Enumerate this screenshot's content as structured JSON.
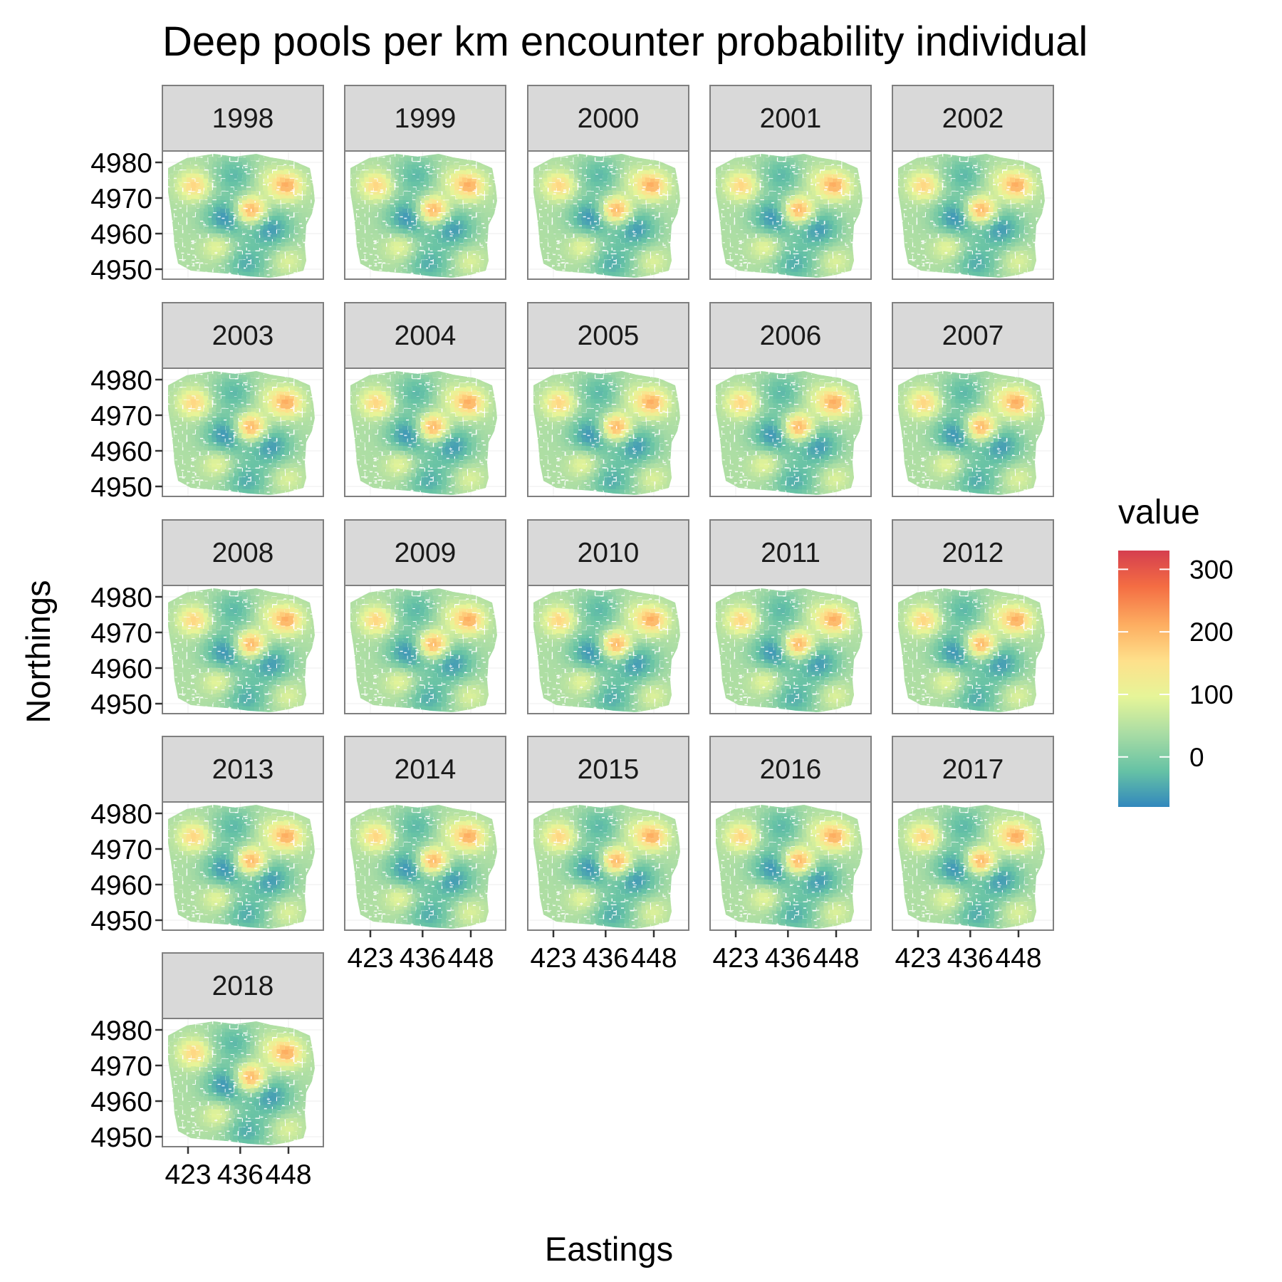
{
  "chart_data": {
    "type": "heatmap",
    "title": "Deep pools per km encounter probability individual",
    "xlabel": "Eastings",
    "ylabel": "Northings",
    "panels": [
      "1998",
      "1999",
      "2000",
      "2001",
      "2002",
      "2003",
      "2004",
      "2005",
      "2006",
      "2007",
      "2008",
      "2009",
      "2010",
      "2011",
      "2012",
      "2013",
      "2014",
      "2015",
      "2016",
      "2017",
      "2018"
    ],
    "x_ticks": [
      "423",
      "436",
      "448"
    ],
    "y_ticks": [
      "4980",
      "4970",
      "4960",
      "4950"
    ],
    "x_tick_values": [
      423,
      436,
      448
    ],
    "y_tick_values": [
      4980,
      4970,
      4960,
      4950
    ],
    "xlim": [
      418,
      457
    ],
    "ylim": [
      4947,
      4983
    ],
    "grid": true,
    "legend": {
      "title": "value",
      "ticks": [
        "300",
        "200",
        "100",
        "0"
      ],
      "tick_values": [
        300,
        200,
        100,
        0
      ],
      "range": [
        -80,
        330
      ],
      "placement": "right"
    },
    "colors": [
      "#3288bd",
      "#66c2a5",
      "#abdda4",
      "#e6f598",
      "#fee08b",
      "#fdae61",
      "#f46d43",
      "#d53e4f"
    ],
    "hotspots": [
      {
        "x": 438,
        "y": 4967,
        "value": 250
      },
      {
        "x": 447,
        "y": 4974,
        "value": 210
      },
      {
        "x": 424,
        "y": 4974,
        "value": 170
      },
      {
        "x": 430,
        "y": 4957,
        "value": 110
      },
      {
        "x": 447,
        "y": 4953,
        "value": 90
      },
      {
        "x": 442,
        "y": 4976,
        "value": 80
      }
    ],
    "lowzones": [
      {
        "x": 432,
        "y": 4965,
        "value": -70
      },
      {
        "x": 443,
        "y": 4962,
        "value": -60
      },
      {
        "x": 437,
        "y": 4952,
        "value": -40
      },
      {
        "x": 434,
        "y": 4977,
        "value": -30
      }
    ]
  }
}
